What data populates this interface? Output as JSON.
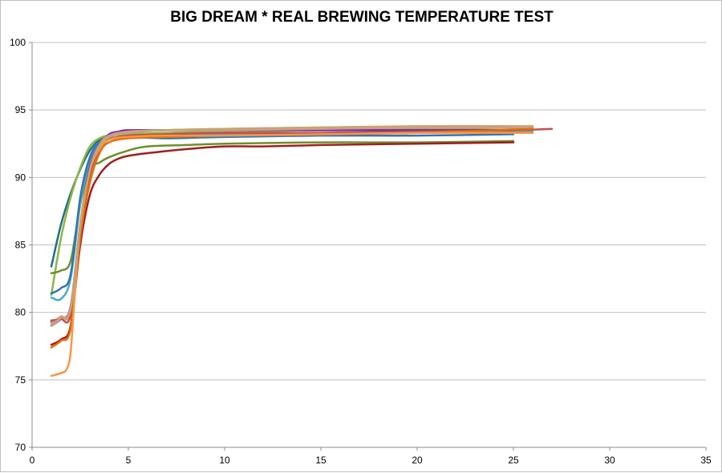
{
  "chart_data": {
    "type": "line",
    "title": "BIG DREAM * REAL BREWING TEMPERATURE TEST",
    "xlabel": "",
    "ylabel": "",
    "xlim": [
      0,
      35
    ],
    "ylim": [
      70,
      100
    ],
    "x_ticks": [
      0,
      5,
      10,
      15,
      20,
      25,
      30,
      35
    ],
    "y_ticks": [
      70,
      75,
      80,
      85,
      90,
      95,
      100
    ],
    "grid": "horizontal",
    "legend": "none",
    "series": [
      {
        "color": "#1f6f8b",
        "x": [
          1,
          1.5,
          2,
          2.5,
          3,
          3.5,
          4,
          5,
          7,
          10,
          15,
          20,
          25
        ],
        "y": [
          83.4,
          86.5,
          88.8,
          90.6,
          92,
          92.8,
          93.1,
          93.2,
          93.3,
          93.4,
          93.5,
          93.5,
          93.5
        ]
      },
      {
        "color": "#8db641",
        "x": [
          1,
          1.5,
          2,
          2.5,
          3,
          3.5,
          4,
          5,
          7,
          10,
          15,
          20,
          26
        ],
        "y": [
          81.3,
          85.5,
          88.5,
          90.7,
          92.3,
          92.9,
          93.1,
          93.2,
          93.3,
          93.4,
          93.5,
          93.6,
          93.7
        ]
      },
      {
        "color": "#6d8f2c",
        "x": [
          1,
          1.5,
          2,
          2.5,
          3,
          3.5,
          4,
          5,
          6,
          8,
          10,
          15,
          20,
          25
        ],
        "y": [
          82.9,
          83.1,
          83.8,
          88,
          90.6,
          91.1,
          91.5,
          92,
          92.3,
          92.4,
          92.5,
          92.6,
          92.6,
          92.7
        ]
      },
      {
        "color": "#4bacc6",
        "x": [
          1,
          1.5,
          2,
          2.5,
          3,
          3.5,
          4,
          5,
          7,
          10,
          15,
          20,
          26
        ],
        "y": [
          81.1,
          81,
          82.5,
          88,
          91.2,
          92.5,
          92.9,
          93,
          93.1,
          93.2,
          93.3,
          93.4,
          93.4
        ]
      },
      {
        "color": "#2e75b6",
        "x": [
          1,
          1.5,
          2,
          2.5,
          3,
          3.5,
          4,
          5,
          7,
          10,
          15,
          20,
          25
        ],
        "y": [
          81.4,
          81.8,
          82.8,
          88.5,
          91.5,
          92.6,
          92.9,
          93,
          92.9,
          93,
          93.1,
          93.1,
          93.2
        ]
      },
      {
        "color": "#7030a0",
        "x": [
          1,
          1.5,
          2,
          2.5,
          3,
          3.5,
          4,
          4.5,
          5,
          7,
          10,
          15,
          20,
          25
        ],
        "y": [
          79.3,
          79.6,
          80.3,
          86.5,
          90.8,
          92.4,
          93.2,
          93.4,
          93.5,
          93.5,
          93.5,
          93.5,
          93.5,
          93.5
        ]
      },
      {
        "color": "#b48fc0",
        "x": [
          1,
          1.5,
          2,
          2.5,
          3,
          3.5,
          4,
          5,
          7,
          10,
          15,
          20,
          26
        ],
        "y": [
          79,
          79.5,
          80.5,
          86.5,
          90.5,
          92.3,
          93,
          93.3,
          93.5,
          93.6,
          93.7,
          93.7,
          93.7
        ]
      },
      {
        "color": "#d99694",
        "x": [
          1,
          1.5,
          2,
          2.5,
          3,
          3.5,
          4,
          5,
          7,
          10,
          15,
          20,
          26
        ],
        "y": [
          79.2,
          79.7,
          80,
          86.2,
          90.6,
          92.4,
          93.1,
          93.4,
          93.5,
          93.5,
          93.6,
          93.7,
          93.7
        ]
      },
      {
        "color": "#c0504d",
        "x": [
          1,
          1.5,
          2,
          2.5,
          3,
          3.5,
          4,
          5,
          7,
          10,
          15,
          20,
          25,
          27
        ],
        "y": [
          79.4,
          79.5,
          79.8,
          86,
          90.2,
          92,
          92.8,
          93.1,
          93.2,
          93.3,
          93.3,
          93.4,
          93.5,
          93.6
        ]
      },
      {
        "color": "#a01f1f",
        "x": [
          1,
          1.5,
          2,
          2.5,
          3,
          3.5,
          4,
          4.5,
          5,
          6,
          8,
          10,
          12,
          15,
          20,
          25
        ],
        "y": [
          77.6,
          78,
          79,
          85,
          88.7,
          90.2,
          91,
          91.4,
          91.6,
          91.8,
          92.1,
          92.3,
          92.3,
          92.4,
          92.5,
          92.6
        ]
      },
      {
        "color": "#e46c0a",
        "x": [
          1,
          1.5,
          2,
          2.5,
          3,
          3.5,
          4,
          5,
          7,
          10,
          15,
          20,
          26
        ],
        "y": [
          77.4,
          77.9,
          78.8,
          85.5,
          89.6,
          91.8,
          92.6,
          92.9,
          93,
          93.1,
          93.2,
          93.3,
          93.6
        ]
      },
      {
        "color": "#f79646",
        "x": [
          1,
          1.5,
          1.8,
          2,
          2.2,
          2.5,
          3,
          3.5,
          4,
          5,
          7,
          10,
          15,
          20,
          26
        ],
        "y": [
          75.3,
          75.5,
          75.8,
          77,
          81,
          86.5,
          90.5,
          92.1,
          92.8,
          93,
          93.1,
          93.1,
          93.2,
          93.3,
          93.3
        ]
      },
      {
        "color": "#c6a66a",
        "x": [
          1,
          1.5,
          2,
          2.5,
          3,
          3.5,
          4,
          5,
          7,
          10,
          15,
          20,
          26
        ],
        "y": [
          79.1,
          79.6,
          80.2,
          86.3,
          90.5,
          92.3,
          93,
          93.3,
          93.5,
          93.6,
          93.7,
          93.8,
          93.8
        ]
      }
    ]
  }
}
